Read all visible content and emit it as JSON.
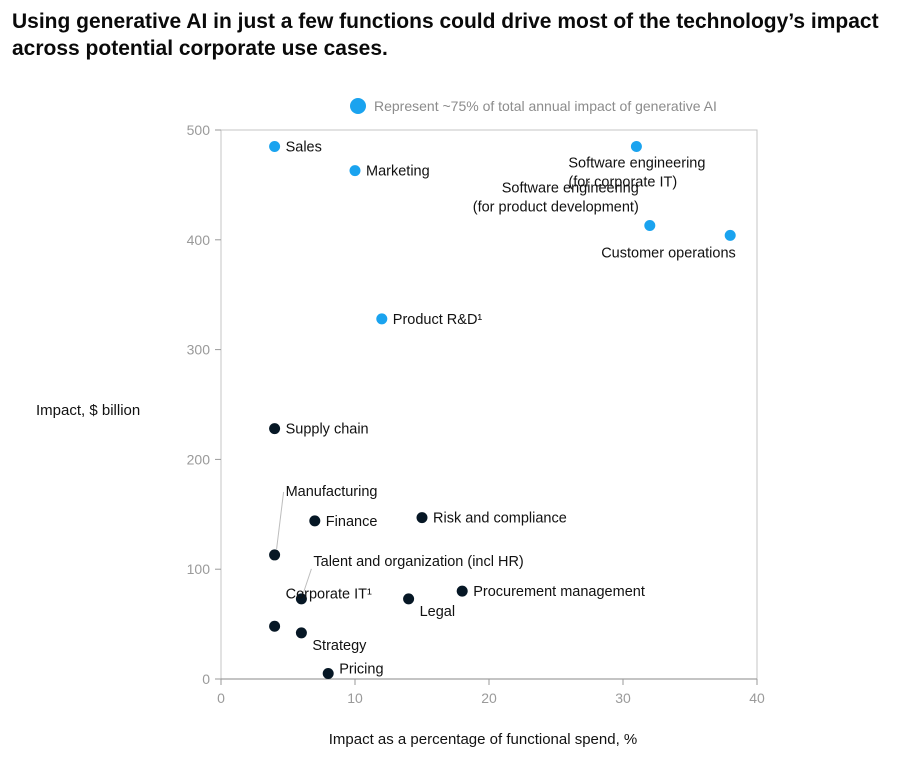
{
  "chart_title": "Using generative AI in just a few functions could drive most of the technology’s impact across potential corporate use cases.",
  "colors": {
    "highlight": "#1aa3ef",
    "other": "#061725",
    "axis": "#9a9a9a"
  },
  "chart_data": {
    "type": "scatter",
    "title": "Using generative AI in just a few functions could drive most of the technology’s impact across potential corporate use cases.",
    "xlabel": "Impact as a percentage of functional spend, %",
    "ylabel": "Impact, $ billion",
    "xlim": [
      0,
      40
    ],
    "ylim": [
      0,
      500
    ],
    "x_ticks": [
      "0",
      "10",
      "20",
      "30",
      "40"
    ],
    "y_ticks": [
      "0",
      "100",
      "200",
      "300",
      "400",
      "500"
    ],
    "grid": false,
    "legend": {
      "label": "Represent ~75% of total annual impact of generative AI",
      "placement": "top"
    },
    "points": [
      {
        "label": "Sales",
        "x": 4,
        "y": 485,
        "highlight": true
      },
      {
        "label": "Marketing",
        "x": 10,
        "y": 463,
        "highlight": true
      },
      {
        "label": "Software engineering|(for corporate IT)",
        "x": 31,
        "y": 485,
        "highlight": true
      },
      {
        "label": "Software engineering|(for product development)",
        "x": 32,
        "y": 413,
        "highlight": true
      },
      {
        "label": "Customer operations",
        "x": 38,
        "y": 404,
        "highlight": true
      },
      {
        "label": "Product R&D¹",
        "x": 12,
        "y": 328,
        "highlight": true
      },
      {
        "label": "Supply chain",
        "x": 4,
        "y": 228,
        "highlight": false
      },
      {
        "label": "Manufacturing",
        "x": 4,
        "y": 113,
        "highlight": false
      },
      {
        "label": "Finance",
        "x": 7,
        "y": 144,
        "highlight": false
      },
      {
        "label": "Risk and compliance",
        "x": 15,
        "y": 147,
        "highlight": false
      },
      {
        "label": "Talent and organization (incl HR)",
        "x": 6,
        "y": 73,
        "highlight": false
      },
      {
        "label": "Procurement management",
        "x": 18,
        "y": 80,
        "highlight": false
      },
      {
        "label": "Legal",
        "x": 14,
        "y": 73,
        "highlight": false
      },
      {
        "label": "Corporate IT¹",
        "x": 4,
        "y": 48,
        "highlight": false
      },
      {
        "label": "Strategy",
        "x": 6,
        "y": 42,
        "highlight": false
      },
      {
        "label": "Pricing",
        "x": 8,
        "y": 5,
        "highlight": false
      }
    ]
  }
}
